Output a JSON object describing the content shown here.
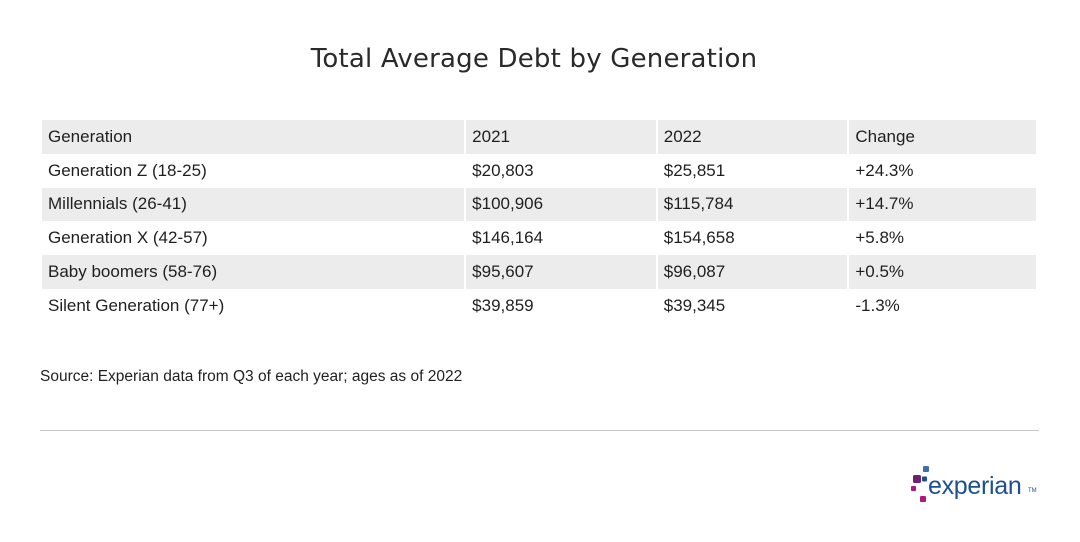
{
  "chart_data": {
    "type": "table",
    "title": "Total Average Debt by Generation",
    "columns": [
      "Generation",
      "2021",
      "2022",
      "Change"
    ],
    "rows": [
      [
        "Generation Z (18-25)",
        "$20,803",
        "$25,851",
        "+24.3%"
      ],
      [
        "Millennials (26-41)",
        "$100,906",
        "$115,784",
        "+14.7%"
      ],
      [
        "Generation X (42-57)",
        "$146,164",
        "$154,658",
        "+5.8%"
      ],
      [
        "Baby boomers (58-76)",
        "$95,607",
        "$96,087",
        "+0.5%"
      ],
      [
        "Silent Generation (77+)",
        "$39,859",
        "$39,345",
        "-1.3%"
      ]
    ],
    "source": "Source: Experian data from Q3 of each year; ages as of 2022"
  },
  "brand": {
    "logo_text": "experian",
    "trademark": "TM",
    "colors": {
      "text_blue": "#1d4f91",
      "dot_purple": "#6d2077",
      "dot_magenta": "#af1685",
      "dot_blue": "#426da9",
      "dot_dark_blue": "#1d4f91"
    }
  },
  "colors": {
    "row_shade": "#ececec",
    "divider": "#c8c8c8"
  }
}
